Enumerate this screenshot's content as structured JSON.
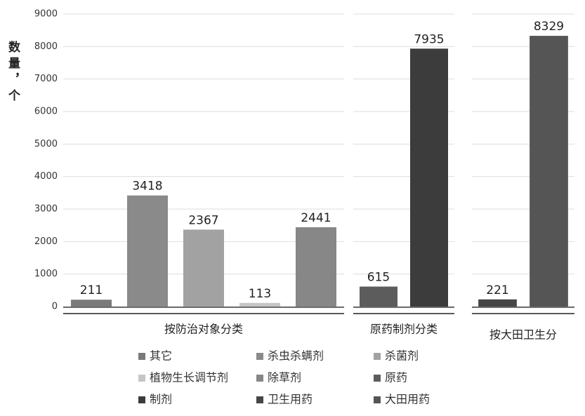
{
  "chart_data": {
    "type": "bar",
    "y_label": "数量，个",
    "ylim": [
      0,
      9000
    ],
    "yticks": [
      0,
      1000,
      2000,
      3000,
      4000,
      5000,
      6000,
      7000,
      8000,
      9000
    ],
    "grid": true,
    "groups": [
      {
        "name": "按防治对象分类",
        "series": [
          {
            "name": "其它",
            "color": "#7a7a7a",
            "value": 211
          },
          {
            "name": "杀虫杀螨剂",
            "color": "#8a8a8a",
            "value": 3418
          },
          {
            "name": "杀菌剂",
            "color": "#a2a2a2",
            "value": 2367
          },
          {
            "name": "植物生长调节剂",
            "color": "#c6c6c6",
            "value": 113
          },
          {
            "name": "除草剂",
            "color": "#878787",
            "value": 2441
          }
        ]
      },
      {
        "name": "原药制剂分类",
        "series": [
          {
            "name": "原药",
            "color": "#5c5c5c",
            "value": 615
          },
          {
            "name": "制剂",
            "color": "#3c3c3c",
            "value": 7935
          }
        ]
      },
      {
        "name": "按大田卫生分",
        "series": [
          {
            "name": "卫生用药",
            "color": "#464646",
            "value": 221
          },
          {
            "name": "大田用药",
            "color": "#555555",
            "value": 8329
          }
        ]
      }
    ]
  }
}
